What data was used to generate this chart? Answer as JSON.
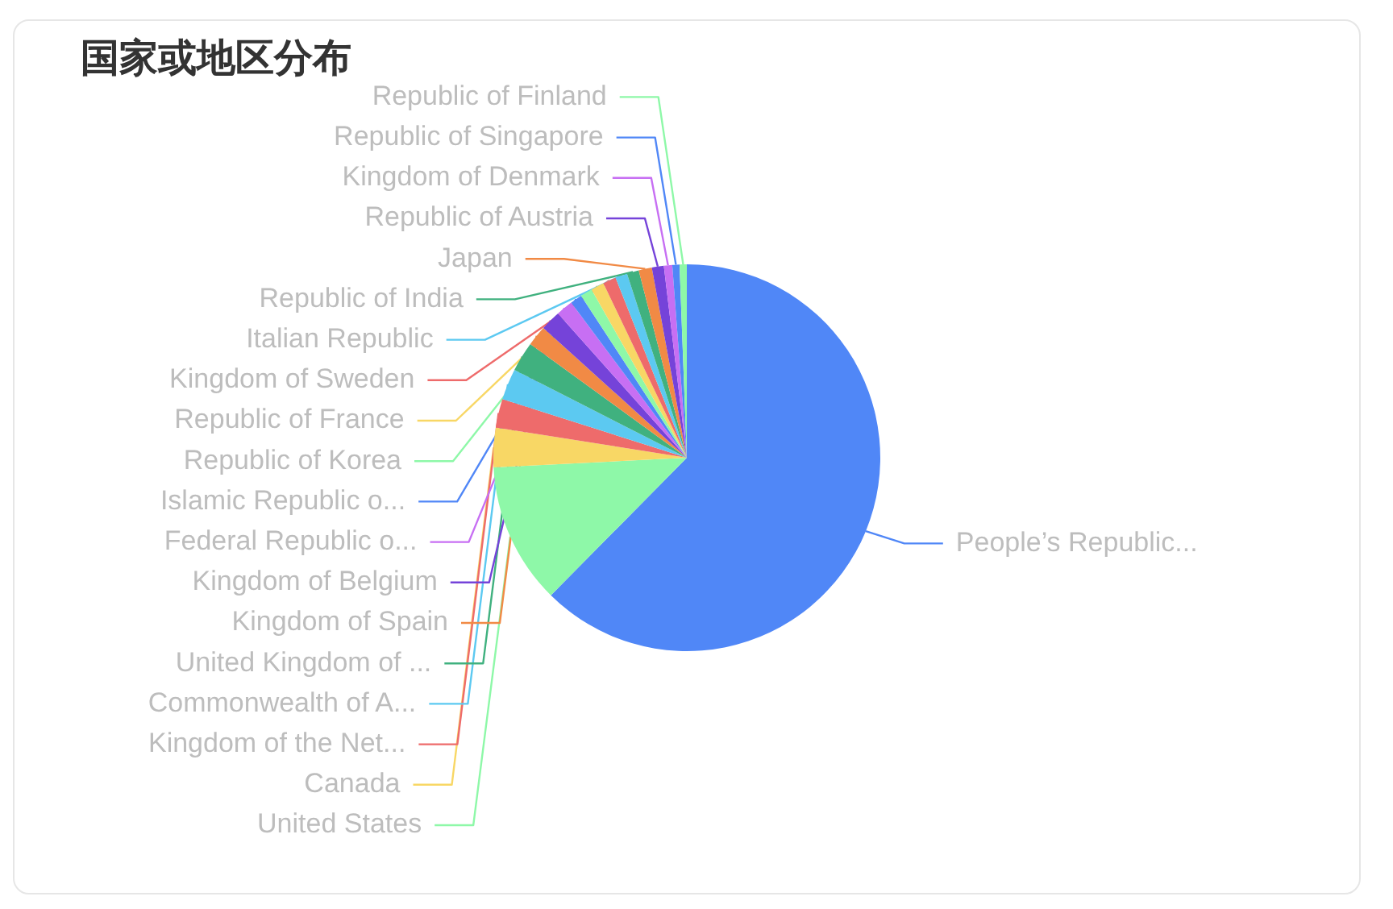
{
  "chart_data": {
    "type": "pie",
    "title": "国家或地区分布",
    "categories": [
      "People’s Republic...",
      "United States",
      "Canada",
      "Kingdom of the Net...",
      "Commonwealth of A...",
      "United Kingdom of ...",
      "Kingdom of Spain",
      "Kingdom of Belgium",
      "Federal Republic o...",
      "Islamic Republic o...",
      "Republic of Korea",
      "Republic of France",
      "Kingdom of Sweden",
      "Italian Republic",
      "Republic of India",
      "Japan",
      "Republic of Austria",
      "Kingdom of Denmark",
      "Republic of Singapore",
      "Republic of Finland"
    ],
    "values": [
      62.4,
      11.8,
      3.3,
      2.4,
      2.6,
      2.5,
      1.7,
      1.7,
      1.4,
      1.0,
      1.0,
      1.1,
      1.1,
      1.0,
      1.0,
      1.1,
      1.0,
      0.7,
      0.6,
      0.6
    ],
    "colors": [
      "#5087f7",
      "#8ef8a8",
      "#f8d765",
      "#ee6b6b",
      "#5cc9f1",
      "#40b17f",
      "#f18a45",
      "#7543d9",
      "#c76ff3",
      "#5087f7",
      "#8ef8a8",
      "#f8d765",
      "#ee6b6b",
      "#5cc9f1",
      "#40b17f",
      "#f18a45",
      "#7543d9",
      "#c76ff3",
      "#5087f7",
      "#8ef8a8"
    ]
  }
}
